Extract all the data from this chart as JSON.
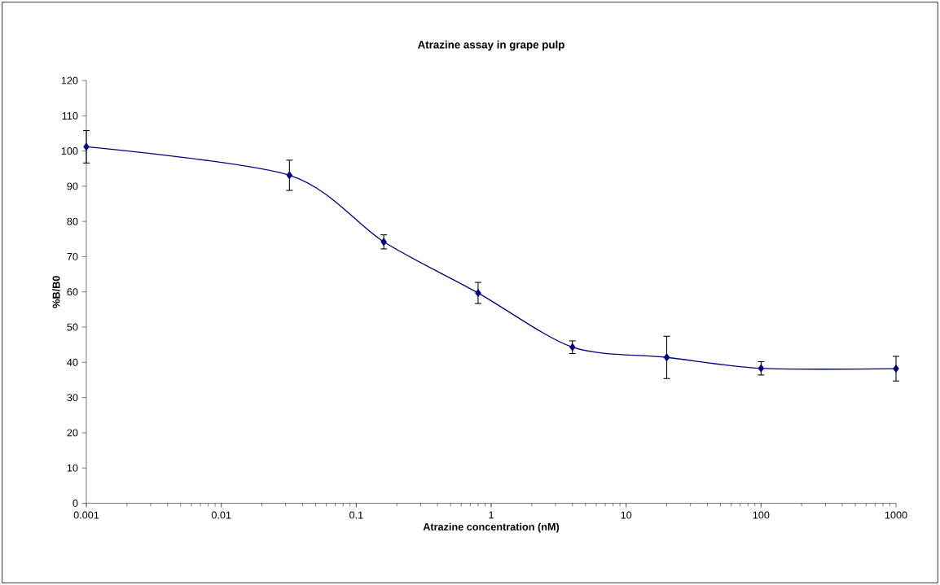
{
  "chart_data": {
    "type": "line",
    "title": "Atrazine assay in grape pulp",
    "xlabel": "Atrazine concentration (nM)",
    "ylabel": "%B/B0",
    "x": [
      0.001,
      0.032,
      0.16,
      0.8,
      4,
      20,
      100,
      1000
    ],
    "values": [
      101.2,
      93.1,
      74.2,
      59.7,
      44.3,
      41.4,
      38.3,
      38.2
    ],
    "errors": [
      4.6,
      4.3,
      2,
      3,
      1.8,
      6,
      1.9,
      3.5
    ],
    "color": "#000080",
    "marker": "diamond",
    "line_style": "solid",
    "log": "x",
    "xlim": [
      0.001,
      1000
    ],
    "ylim": [
      0,
      120
    ],
    "xticks": [
      0.001,
      0.01,
      0.1,
      1,
      10,
      100,
      1000
    ],
    "yticks": [
      0,
      10,
      20,
      30,
      40,
      50,
      60,
      70,
      80,
      90,
      100,
      110,
      120
    ]
  }
}
